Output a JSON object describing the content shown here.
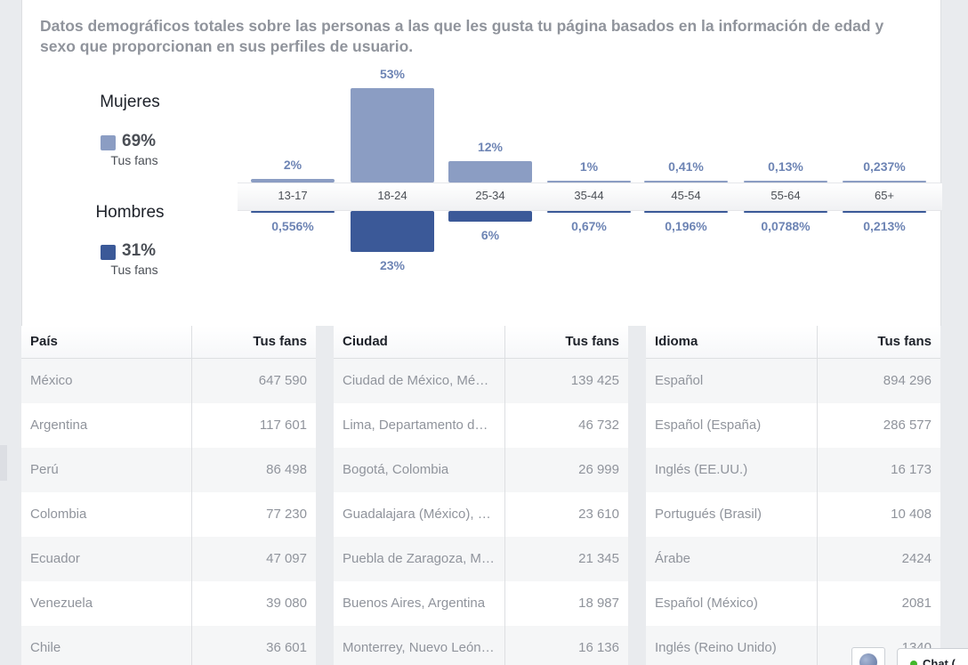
{
  "description": "Datos demográficos totales sobre las personas a las que les gusta tu página basados en la información de edad y sexo que proporcionan en sus perfiles de usuario.",
  "legend": {
    "women": {
      "title": "Mujeres",
      "pct": "69%",
      "sub": "Tus fans",
      "color": "#8b9dc3"
    },
    "men": {
      "title": "Hombres",
      "pct": "31%",
      "sub": "Tus fans",
      "color": "#3b5998"
    }
  },
  "chart_data": {
    "type": "bar",
    "categories": [
      "13-17",
      "18-24",
      "25-34",
      "35-44",
      "45-54",
      "55-64",
      "65+"
    ],
    "series": [
      {
        "name": "Mujeres",
        "values": [
          2,
          53,
          12,
          1,
          0.41,
          0.13,
          0.237
        ],
        "labels": [
          "2%",
          "53%",
          "12%",
          "1%",
          "0,41%",
          "0,13%",
          "0,237%"
        ]
      },
      {
        "name": "Hombres",
        "values": [
          0.556,
          23,
          6,
          0.67,
          0.196,
          0.0788,
          0.213
        ],
        "labels": [
          "0,556%",
          "23%",
          "6%",
          "0,67%",
          "0,196%",
          "0,0788%",
          "0,213%"
        ]
      }
    ]
  },
  "tables": [
    {
      "headers": [
        "País",
        "Tus fans"
      ],
      "rows": [
        [
          "México",
          "647 590"
        ],
        [
          "Argentina",
          "117 601"
        ],
        [
          "Perú",
          "86 498"
        ],
        [
          "Colombia",
          "77 230"
        ],
        [
          "Ecuador",
          "47 097"
        ],
        [
          "Venezuela",
          "39 080"
        ],
        [
          "Chile",
          "36 601"
        ]
      ]
    },
    {
      "headers": [
        "Ciudad",
        "Tus fans"
      ],
      "rows": [
        [
          "Ciudad de México, Mé…",
          "139 425"
        ],
        [
          "Lima, Departamento d…",
          "46 732"
        ],
        [
          "Bogotá, Colombia",
          "26 999"
        ],
        [
          "Guadalajara (México), …",
          "23 610"
        ],
        [
          "Puebla de Zaragoza, M…",
          "21 345"
        ],
        [
          "Buenos Aires, Argentina",
          "18 987"
        ],
        [
          "Monterrey, Nuevo León…",
          "16 136"
        ]
      ]
    },
    {
      "headers": [
        "Idioma",
        "Tus fans"
      ],
      "rows": [
        [
          "Español",
          "894 296"
        ],
        [
          "Español (España)",
          "286 577"
        ],
        [
          "Inglés (EE.UU.)",
          "16 173"
        ],
        [
          "Portugués (Brasil)",
          "10 408"
        ],
        [
          "Árabe",
          "2424"
        ],
        [
          "Español (México)",
          "2081"
        ],
        [
          "Inglés (Reino Unido)",
          "1340"
        ]
      ]
    }
  ],
  "chat": {
    "label": "Chat (",
    "icon": "globe-icon"
  }
}
